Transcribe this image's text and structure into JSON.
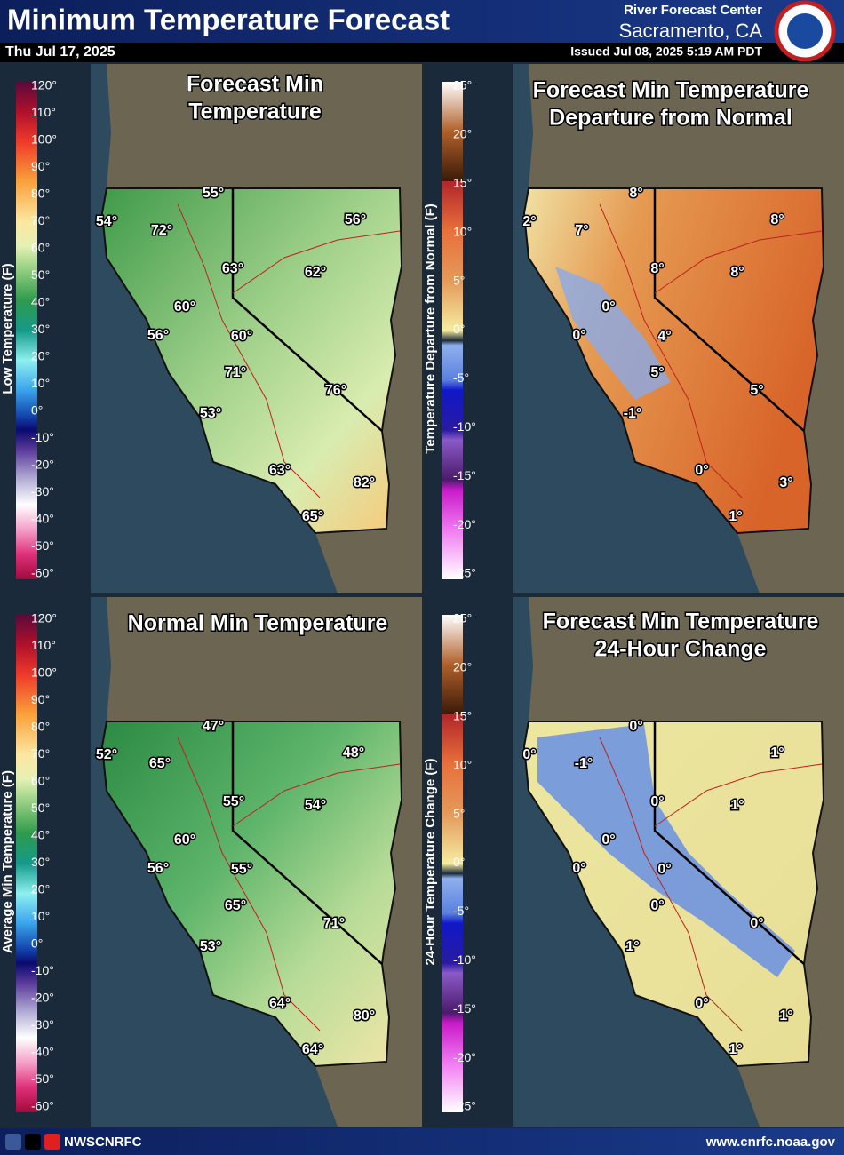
{
  "header": {
    "title": "Minimum Temperature Forecast",
    "date": "Thu Jul 17, 2025",
    "office": "River Forecast Center",
    "location": "Sacramento, CA",
    "issued": "Issued Jul 08, 2025 5:19 AM PDT"
  },
  "panels": [
    {
      "title_lines": [
        "Forecast Min",
        "Temperature"
      ],
      "colorbar": {
        "title": "Low Temperature (F)",
        "ticks": [
          "120°",
          "110°",
          "100°",
          "90°",
          "80°",
          "70°",
          "60°",
          "50°",
          "40°",
          "30°",
          "20°",
          "10°",
          "0°",
          "-10°",
          "-20°",
          "-30°",
          "-40°",
          "-50°",
          "-60°"
        ]
      },
      "labels": [
        "54°",
        "55°",
        "72°",
        "56°",
        "63°",
        "62°",
        "60°",
        "56°",
        "60°",
        "71°",
        "76°",
        "53°",
        "63°",
        "82°",
        "65°"
      ]
    },
    {
      "title_lines": [
        "Forecast Min Temperature",
        "Departure from Normal"
      ],
      "colorbar": {
        "title": "Temperature Departure from Normal (F)",
        "ticks": [
          "25°",
          "20°",
          "15°",
          "10°",
          "5°",
          "0°",
          "-5°",
          "-10°",
          "-15°",
          "-20°",
          "-25°"
        ]
      },
      "labels": [
        "2°",
        "8°",
        "7°",
        "8°",
        "8°",
        "8°",
        "0°",
        "0°",
        "4°",
        "5°",
        "5°",
        "-1°",
        "0°",
        "3°",
        "1°"
      ]
    },
    {
      "title_lines": [
        "Normal Min Temperature"
      ],
      "colorbar": {
        "title": "Average Min Temperature (F)",
        "ticks": [
          "120°",
          "110°",
          "100°",
          "90°",
          "80°",
          "70°",
          "60°",
          "50°",
          "40°",
          "30°",
          "20°",
          "10°",
          "0°",
          "-10°",
          "-20°",
          "-30°",
          "-40°",
          "-50°",
          "-60°"
        ]
      },
      "labels": [
        "52°",
        "47°",
        "65°",
        "48°",
        "55°",
        "54°",
        "60°",
        "56°",
        "55°",
        "65°",
        "71°",
        "53°",
        "64°",
        "80°",
        "64°"
      ]
    },
    {
      "title_lines": [
        "Forecast Min Temperature",
        "24-Hour Change"
      ],
      "colorbar": {
        "title": "24-Hour Temperature Change (F)",
        "ticks": [
          "25°",
          "20°",
          "15°",
          "10°",
          "5°",
          "0°",
          "-5°",
          "-10°",
          "-15°",
          "-20°",
          "-25°"
        ]
      },
      "labels": [
        "0°",
        "0°",
        "-1°",
        "1°",
        "0°",
        "1°",
        "0°",
        "0°",
        "0°",
        "0°",
        "0°",
        "1°",
        "0°",
        "1°",
        "1°"
      ]
    }
  ],
  "footer": {
    "handle": "NWSCNRFC",
    "url": "www.cnrfc.noaa.gov"
  }
}
